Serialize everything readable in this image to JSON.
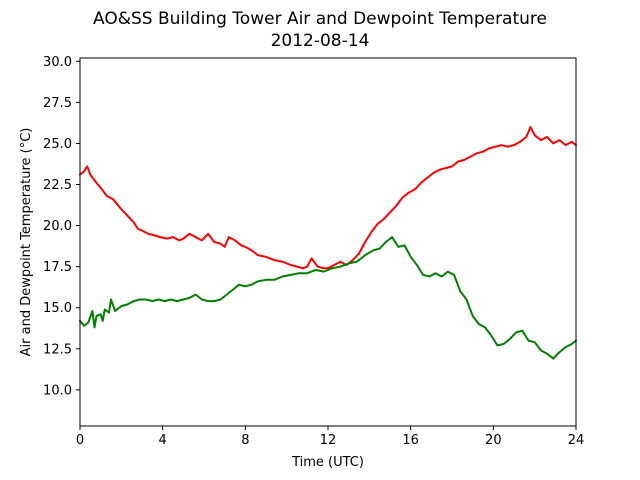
{
  "chart_data": {
    "type": "line",
    "title": "AO&SS Building Tower Air and Dewpoint Temperature",
    "subtitle": "2012-08-14",
    "xlabel": "Time (UTC)",
    "ylabel": "Air and Dewpoint Temperature (°C)",
    "xlim": [
      0,
      24
    ],
    "ylim": [
      7.8,
      30.2
    ],
    "xticks": [
      0,
      4,
      8,
      12,
      16,
      20,
      24
    ],
    "xtick_labels": [
      "0",
      "4",
      "8",
      "12",
      "16",
      "20",
      "24"
    ],
    "yticks": [
      10.0,
      12.5,
      15.0,
      17.5,
      20.0,
      22.5,
      25.0,
      27.5,
      30.0
    ],
    "ytick_labels": [
      "10.0",
      "12.5",
      "15.0",
      "17.5",
      "20.0",
      "22.5",
      "25.0",
      "27.5",
      "30.0"
    ],
    "grid": false,
    "series": [
      {
        "color": "#ff0000",
        "x": [
          0.0,
          0.2,
          0.35,
          0.5,
          0.8,
          1.0,
          1.3,
          1.6,
          1.8,
          2.0,
          2.3,
          2.6,
          2.8,
          3.0,
          3.3,
          3.6,
          3.9,
          4.2,
          4.5,
          4.8,
          5.0,
          5.3,
          5.6,
          5.9,
          6.2,
          6.5,
          6.8,
          7.0,
          7.2,
          7.5,
          7.8,
          8.0,
          8.3,
          8.6,
          9.0,
          9.4,
          9.8,
          10.2,
          10.5,
          10.8,
          11.0,
          11.2,
          11.5,
          11.8,
          12.0,
          12.3,
          12.6,
          12.9,
          13.2,
          13.5,
          13.8,
          14.1,
          14.4,
          14.7,
          15.0,
          15.3,
          15.6,
          15.9,
          16.2,
          16.5,
          16.8,
          17.1,
          17.4,
          17.7,
          18.0,
          18.3,
          18.6,
          18.9,
          19.2,
          19.5,
          19.8,
          20.1,
          20.4,
          20.7,
          21.0,
          21.3,
          21.6,
          21.8,
          22.0,
          22.3,
          22.6,
          22.9,
          23.2,
          23.5,
          23.8,
          24.0
        ],
        "values": [
          23.1,
          23.3,
          23.6,
          23.1,
          22.6,
          22.3,
          21.8,
          21.6,
          21.3,
          21.0,
          20.6,
          20.2,
          19.8,
          19.7,
          19.5,
          19.4,
          19.3,
          19.2,
          19.3,
          19.1,
          19.2,
          19.5,
          19.3,
          19.1,
          19.5,
          19.0,
          18.9,
          18.7,
          19.3,
          19.1,
          18.8,
          18.7,
          18.5,
          18.2,
          18.1,
          17.9,
          17.8,
          17.6,
          17.5,
          17.4,
          17.5,
          18.0,
          17.5,
          17.4,
          17.4,
          17.6,
          17.8,
          17.6,
          17.9,
          18.3,
          19.0,
          19.6,
          20.1,
          20.4,
          20.8,
          21.2,
          21.7,
          22.0,
          22.2,
          22.6,
          22.9,
          23.2,
          23.4,
          23.5,
          23.6,
          23.9,
          24.0,
          24.2,
          24.4,
          24.5,
          24.7,
          24.8,
          24.9,
          24.8,
          24.9,
          25.1,
          25.4,
          26.0,
          25.5,
          25.2,
          25.4,
          25.0,
          25.2,
          24.9,
          25.1,
          24.9
        ]
      },
      {
        "color": "#008000",
        "x": [
          0.0,
          0.2,
          0.4,
          0.6,
          0.7,
          0.8,
          1.0,
          1.1,
          1.2,
          1.4,
          1.5,
          1.7,
          2.0,
          2.3,
          2.6,
          2.9,
          3.2,
          3.5,
          3.8,
          4.1,
          4.4,
          4.7,
          5.0,
          5.3,
          5.6,
          5.9,
          6.2,
          6.5,
          6.8,
          7.1,
          7.4,
          7.7,
          8.0,
          8.3,
          8.6,
          9.0,
          9.4,
          9.8,
          10.2,
          10.6,
          11.0,
          11.4,
          11.8,
          12.2,
          12.6,
          13.0,
          13.4,
          13.8,
          14.2,
          14.5,
          14.8,
          15.1,
          15.4,
          15.7,
          16.0,
          16.3,
          16.6,
          16.9,
          17.2,
          17.5,
          17.8,
          18.1,
          18.4,
          18.7,
          19.0,
          19.3,
          19.6,
          19.9,
          20.2,
          20.5,
          20.8,
          21.1,
          21.4,
          21.7,
          22.0,
          22.3,
          22.6,
          22.9,
          23.2,
          23.5,
          23.8,
          24.0
        ],
        "values": [
          14.2,
          13.9,
          14.1,
          14.8,
          13.8,
          14.5,
          14.6,
          14.2,
          14.9,
          14.7,
          15.5,
          14.8,
          15.1,
          15.2,
          15.4,
          15.5,
          15.5,
          15.4,
          15.5,
          15.4,
          15.5,
          15.4,
          15.5,
          15.6,
          15.8,
          15.5,
          15.4,
          15.4,
          15.5,
          15.8,
          16.1,
          16.4,
          16.3,
          16.4,
          16.6,
          16.7,
          16.7,
          16.9,
          17.0,
          17.1,
          17.1,
          17.3,
          17.2,
          17.4,
          17.5,
          17.7,
          17.8,
          18.2,
          18.5,
          18.6,
          19.0,
          19.3,
          18.7,
          18.8,
          18.1,
          17.6,
          17.0,
          16.9,
          17.1,
          16.9,
          17.2,
          17.0,
          16.0,
          15.5,
          14.5,
          14.0,
          13.8,
          13.3,
          12.7,
          12.8,
          13.1,
          13.5,
          13.6,
          13.0,
          12.9,
          12.4,
          12.2,
          11.9,
          12.3,
          12.6,
          12.8,
          13.0
        ]
      }
    ]
  }
}
